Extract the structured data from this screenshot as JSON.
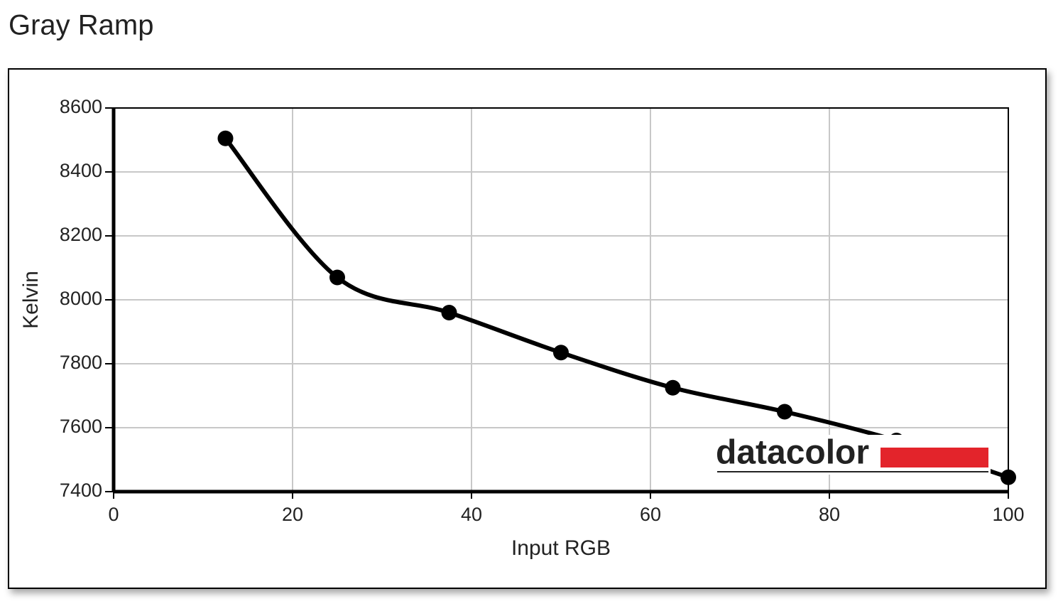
{
  "title": "Gray Ramp",
  "chart_data": {
    "type": "line",
    "x_label": "Input RGB",
    "y_label": "Kelvin",
    "logo": "datacolor",
    "x": [
      12.5,
      25,
      37.5,
      50,
      62.5,
      75,
      87.5,
      100
    ],
    "series": [
      {
        "color": "#000000",
        "values": [
          8505,
          8070,
          7960,
          7835,
          7725,
          7650,
          7560,
          7445
        ]
      }
    ],
    "xlim": [
      0,
      100
    ],
    "xticks": [
      0,
      20,
      40,
      60,
      80,
      100
    ],
    "ylim": [
      7400,
      8600
    ],
    "yticks": [
      7400,
      7600,
      7800,
      8000,
      8200,
      8400,
      8600
    ],
    "grid": true
  }
}
